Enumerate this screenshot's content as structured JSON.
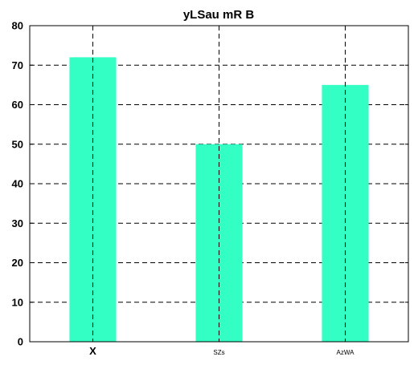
{
  "chart_data": {
    "type": "bar",
    "title": "yLSau mR  B",
    "xlabel": "",
    "ylabel": "",
    "categories": [
      "X",
      "SZs",
      "AzWA"
    ],
    "values": [
      72,
      50,
      65
    ],
    "ylim": [
      0,
      80
    ],
    "yticks": [
      0,
      10,
      20,
      30,
      40,
      50,
      60,
      70,
      80
    ],
    "grid": true,
    "grid_style": "dashed",
    "bar_color": "#33ffc4",
    "legend": "none"
  }
}
